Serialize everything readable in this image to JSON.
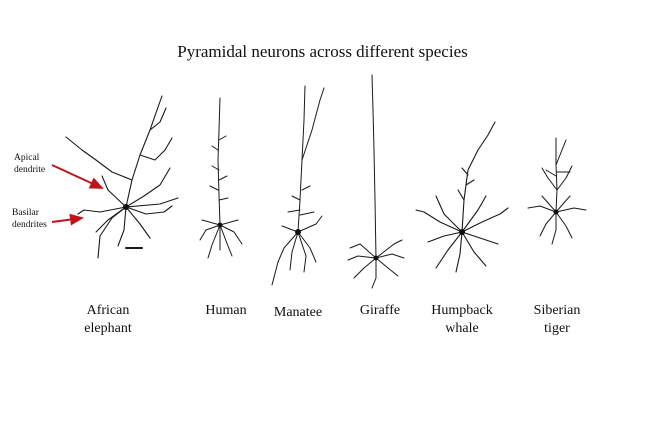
{
  "title": "Pyramidal neurons across different species",
  "annotations": {
    "apical": [
      "Apical",
      "dendrite"
    ],
    "basilar": [
      "Basilar",
      "dendrites"
    ]
  },
  "species": [
    {
      "id": "elephant",
      "label_lines": [
        "African",
        "elephant"
      ]
    },
    {
      "id": "human",
      "label_lines": [
        "Human"
      ]
    },
    {
      "id": "manatee",
      "label_lines": [
        "Manatee"
      ]
    },
    {
      "id": "giraffe",
      "label_lines": [
        "Giraffe"
      ]
    },
    {
      "id": "whale",
      "label_lines": [
        "Humpback",
        "whale"
      ]
    },
    {
      "id": "tiger",
      "label_lines": [
        "Siberian",
        "tiger"
      ]
    }
  ],
  "colors": {
    "arrow": "#c0141b",
    "ink": "#1a1a1a"
  }
}
